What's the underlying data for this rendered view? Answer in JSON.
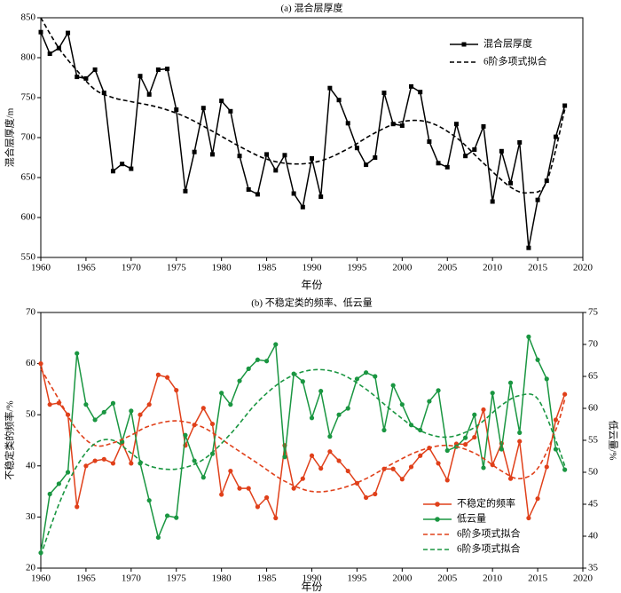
{
  "chart_data": [
    {
      "type": "line",
      "title": "(a) 混合层厚度",
      "xlabel": "年份",
      "ylabel": "混合层厚度/m",
      "xlim": [
        1960,
        2020
      ],
      "xticks": [
        1960,
        1965,
        1970,
        1975,
        1980,
        1985,
        1990,
        1995,
        2000,
        2005,
        2010,
        2015,
        2020
      ],
      "ylim": [
        550,
        850
      ],
      "yticks": [
        550,
        600,
        650,
        700,
        750,
        800,
        850
      ],
      "legend": "upper right",
      "x": [
        1960,
        1961,
        1962,
        1963,
        1964,
        1965,
        1966,
        1967,
        1968,
        1969,
        1970,
        1971,
        1972,
        1973,
        1974,
        1975,
        1976,
        1977,
        1978,
        1979,
        1980,
        1981,
        1982,
        1983,
        1984,
        1985,
        1986,
        1987,
        1988,
        1989,
        1990,
        1991,
        1992,
        1993,
        1994,
        1995,
        1996,
        1997,
        1998,
        1999,
        2000,
        2001,
        2002,
        2003,
        2004,
        2005,
        2006,
        2007,
        2008,
        2009,
        2010,
        2011,
        2012,
        2013,
        2014,
        2015,
        2016,
        2017,
        2018
      ],
      "series": [
        {
          "name": "混合层厚度",
          "color": "#000000",
          "marker": "square",
          "dashed": false,
          "values": [
            832,
            805,
            812,
            831,
            776,
            774,
            785,
            756,
            658,
            667,
            661,
            777,
            754,
            785,
            786,
            735,
            633,
            682,
            737,
            679,
            746,
            733,
            677,
            635,
            629,
            679,
            659,
            678,
            630,
            613,
            674,
            626,
            762,
            747,
            718,
            687,
            666,
            675,
            756,
            717,
            715,
            764,
            757,
            695,
            668,
            663,
            717,
            677,
            685,
            714,
            620,
            683,
            643,
            694,
            562,
            622,
            646,
            701,
            740
          ]
        },
        {
          "name": "6阶多项式拟合",
          "color": "#000000",
          "dashed": true,
          "x": [
            1960,
            1962,
            1964,
            1966,
            1968,
            1970,
            1973,
            1976,
            1979,
            1982,
            1985,
            1988,
            1991,
            1994,
            1997,
            2000,
            2003,
            2006,
            2009,
            2012,
            2014,
            2016,
            2018
          ],
          "values": [
            850,
            812,
            784,
            760,
            750,
            745,
            738,
            726,
            708,
            689,
            673,
            667,
            671,
            686,
            706,
            720,
            719,
            700,
            668,
            638,
            631,
            645,
            735
          ]
        }
      ]
    },
    {
      "type": "line",
      "title": "(b) 不稳定类的频率、低云量",
      "xlabel": "年份",
      "ylabel": "不稳定类的频率/%",
      "y2label": "低云量/%",
      "xlim": [
        1960,
        2020
      ],
      "xticks": [
        1960,
        1965,
        1970,
        1975,
        1980,
        1985,
        1990,
        1995,
        2000,
        2005,
        2010,
        2015,
        2020
      ],
      "ylim": [
        20,
        70
      ],
      "yticks": [
        20,
        30,
        40,
        50,
        60,
        70
      ],
      "y2lim": [
        35,
        75
      ],
      "y2ticks": [
        35,
        40,
        45,
        50,
        55,
        60,
        65,
        70,
        75
      ],
      "legend": "lower right",
      "x": [
        1960,
        1961,
        1962,
        1963,
        1964,
        1965,
        1966,
        1967,
        1968,
        1969,
        1970,
        1971,
        1972,
        1973,
        1974,
        1975,
        1976,
        1977,
        1978,
        1979,
        1980,
        1981,
        1982,
        1983,
        1984,
        1985,
        1986,
        1987,
        1988,
        1989,
        1990,
        1991,
        1992,
        1993,
        1994,
        1995,
        1996,
        1997,
        1998,
        1999,
        2000,
        2001,
        2002,
        2003,
        2004,
        2005,
        2006,
        2007,
        2008,
        2009,
        2010,
        2011,
        2012,
        2013,
        2014,
        2015,
        2016,
        2017,
        2018
      ],
      "series": [
        {
          "name": "不稳定的频率",
          "color": "#e0401a",
          "marker": "circle",
          "dashed": false,
          "values": [
            60,
            52,
            52.3,
            50,
            32,
            40,
            41,
            41.3,
            40.5,
            44.5,
            40.5,
            50,
            52,
            57.8,
            57.3,
            54.8,
            44,
            48,
            51.3,
            48.2,
            34.4,
            39,
            35.6,
            35.6,
            32,
            33.8,
            29.8,
            44,
            35.6,
            37.5,
            42,
            39.5,
            42.8,
            41,
            39,
            36.6,
            33.8,
            34.5,
            39.4,
            39.4,
            37.4,
            39.8,
            42,
            43.5,
            40.5,
            37.2,
            44.3,
            44.2,
            45.6,
            51,
            40.2,
            44.4,
            37.5,
            44.8,
            29.8,
            33.6,
            39.8,
            49,
            54
          ]
        },
        {
          "name": "低云量",
          "color": "#1a9641",
          "marker": "circle",
          "dashed": false,
          "axis": "y2",
          "values": [
            37.4,
            46.6,
            48.2,
            50,
            68.6,
            60.6,
            58.2,
            59.4,
            60.8,
            54.8,
            59.6,
            51.4,
            45.6,
            39.8,
            43.2,
            42.9,
            55.8,
            51.8,
            49.2,
            52.9,
            62.4,
            60.6,
            64.3,
            66.2,
            67.6,
            67.4,
            70,
            52.4,
            65.4,
            64.2,
            58.5,
            62.7,
            55.6,
            59,
            60,
            64.6,
            65.6,
            65,
            56.6,
            63.6,
            60.6,
            57.4,
            56.6,
            61.1,
            62.8,
            53.4,
            54,
            55.4,
            59,
            50.7,
            62.4,
            53.6,
            64,
            56.2,
            71.2,
            67.6,
            64.6,
            53.6,
            50.4
          ]
        },
        {
          "name": "6阶多项式拟合",
          "color": "#e0401a",
          "dashed": true,
          "x": [
            1960,
            1962,
            1964,
            1966,
            1968,
            1970,
            1972,
            1975,
            1978,
            1981,
            1984,
            1987,
            1990,
            1993,
            1996,
            1999,
            2002,
            2005,
            2008,
            2011,
            2013,
            2015,
            2017,
            2018
          ],
          "values": [
            59,
            53,
            47,
            44,
            44.5,
            46,
            47.8,
            48.8,
            47.5,
            44,
            40.5,
            37,
            35,
            35.5,
            37.5,
            40.5,
            43,
            44,
            42.5,
            39,
            37.5,
            39.5,
            47,
            53
          ]
        },
        {
          "name": "6阶多项式拟合",
          "color": "#1a9641",
          "dashed": true,
          "axis": "y2",
          "x": [
            1960,
            1962,
            1964,
            1966,
            1968,
            1970,
            1972,
            1975,
            1978,
            1981,
            1984,
            1987,
            1990,
            1993,
            1996,
            1999,
            2002,
            2005,
            2008,
            2011,
            2013,
            2015,
            2017,
            2018
          ],
          "values": [
            37,
            45,
            51,
            54.5,
            55,
            53,
            51,
            50.5,
            52,
            56,
            61,
            64.5,
            66,
            65.5,
            63,
            59.5,
            56.5,
            55.5,
            57,
            60.5,
            62,
            61.5,
            55,
            51
          ]
        }
      ]
    }
  ]
}
